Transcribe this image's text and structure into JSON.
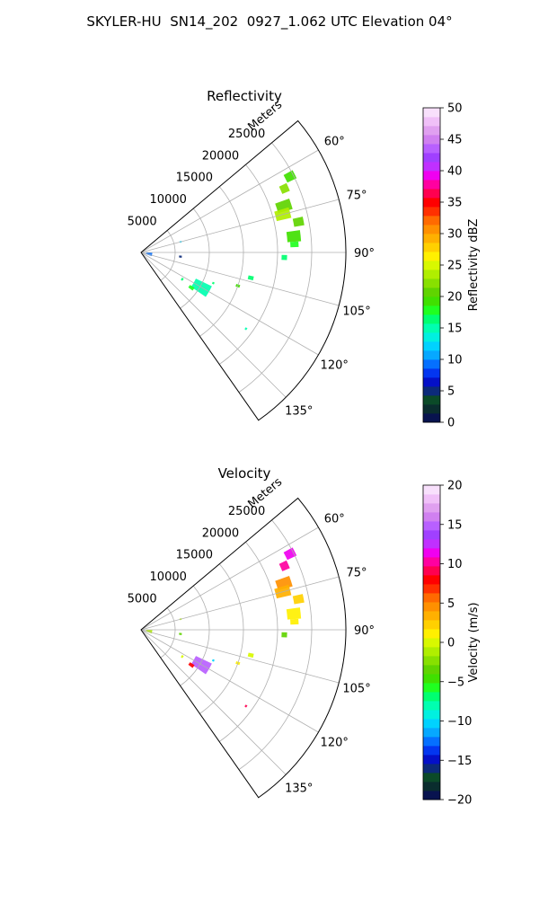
{
  "figure_title": "SKYLER-HU  SN14_202  0927_1.062 UTC Elevation 04°",
  "chart_data": [
    {
      "type": "polar-sector",
      "title": "Reflectivity",
      "radial_label": "Meters",
      "r_ticks": [
        5000,
        10000,
        15000,
        20000,
        25000
      ],
      "r_tick_labels": [
        "5000",
        "10000",
        "15000",
        "20000",
        "25000"
      ],
      "r_range": [
        0,
        30000
      ],
      "theta_ticks": [
        60,
        75,
        90,
        105,
        120,
        135
      ],
      "theta_tick_labels": [
        "60°",
        "75°",
        "90°",
        "105°",
        "120°",
        "135°"
      ],
      "theta_range": [
        50,
        145
      ],
      "grid": true,
      "colorbar": {
        "label": "Reflectivity dBZ",
        "range": [
          0,
          50
        ],
        "ticks": [
          0,
          5,
          10,
          15,
          20,
          25,
          30,
          35,
          40,
          45,
          50
        ],
        "tick_labels": [
          "0",
          "5",
          "10",
          "15",
          "20",
          "25",
          "30",
          "35",
          "40",
          "45",
          "50"
        ],
        "colors": [
          "#08134f",
          "#0a2d2e",
          "#0b4a28",
          "#0c2a7a",
          "#0410c8",
          "#0336f0",
          "#0570ff",
          "#06a8ff",
          "#00d2ff",
          "#00f0e0",
          "#00ffb0",
          "#00ff70",
          "#20ff20",
          "#40e000",
          "#60d400",
          "#88e000",
          "#b0ee00",
          "#d8f800",
          "#fff000",
          "#ffd000",
          "#ffb000",
          "#ff9000",
          "#ff6a00",
          "#ff3000",
          "#ff0000",
          "#ff0050",
          "#ff00a0",
          "#f000f0",
          "#c030ff",
          "#a040ff",
          "#b860ff",
          "#d080f0",
          "#e0a0f0",
          "#f0c0f8",
          "#f8e0fc"
        ]
      },
      "echoes": [
        {
          "az": 63,
          "r": 24500,
          "dr": 1500,
          "daz": 3,
          "value": 19
        },
        {
          "az": 66,
          "r": 23000,
          "dr": 1200,
          "daz": 3,
          "value": 22
        },
        {
          "az": 72,
          "r": 22000,
          "dr": 2200,
          "daz": 4,
          "value": 20
        },
        {
          "az": 75,
          "r": 21500,
          "dr": 2200,
          "daz": 4,
          "value": 23
        },
        {
          "az": 79,
          "r": 23500,
          "dr": 1500,
          "daz": 3,
          "value": 21
        },
        {
          "az": 84,
          "r": 22500,
          "dr": 2000,
          "daz": 4,
          "value": 19
        },
        {
          "az": 87,
          "r": 22500,
          "dr": 1200,
          "daz": 2,
          "value": 18
        },
        {
          "az": 92,
          "r": 21000,
          "dr": 800,
          "daz": 2,
          "value": 17
        },
        {
          "az": 103,
          "r": 16500,
          "dr": 800,
          "daz": 2,
          "value": 17
        },
        {
          "az": 109,
          "r": 15000,
          "dr": 600,
          "daz": 1.5,
          "value": 19
        },
        {
          "az": 120,
          "r": 10200,
          "dr": 2600,
          "daz": 9,
          "value": 15
        },
        {
          "az": 125,
          "r": 9000,
          "dr": 800,
          "daz": 3,
          "value": 18
        },
        {
          "az": 100,
          "r": 1200,
          "dr": 900,
          "daz": 18,
          "value": 9
        },
        {
          "az": 75,
          "r": 6000,
          "dr": 300,
          "daz": 2,
          "value": 12
        },
        {
          "az": 96,
          "r": 5800,
          "dr": 400,
          "daz": 3,
          "value": 5
        },
        {
          "az": 123,
          "r": 7200,
          "dr": 300,
          "daz": 3,
          "value": 16
        },
        {
          "az": 113,
          "r": 11500,
          "dr": 300,
          "daz": 1.5,
          "value": 16
        },
        {
          "az": 126,
          "r": 19000,
          "dr": 300,
          "daz": 1,
          "value": 15
        }
      ]
    },
    {
      "type": "polar-sector",
      "title": "Velocity",
      "radial_label": "Meters",
      "r_ticks": [
        5000,
        10000,
        15000,
        20000,
        25000
      ],
      "r_tick_labels": [
        "5000",
        "10000",
        "15000",
        "20000",
        "25000"
      ],
      "r_range": [
        0,
        30000
      ],
      "theta_ticks": [
        60,
        75,
        90,
        105,
        120,
        135
      ],
      "theta_tick_labels": [
        "60°",
        "75°",
        "90°",
        "105°",
        "120°",
        "135°"
      ],
      "theta_range": [
        50,
        145
      ],
      "grid": true,
      "colorbar": {
        "label": "Velocity (m/s)",
        "range": [
          -20,
          20
        ],
        "ticks": [
          -20,
          -15,
          -10,
          -5,
          0,
          5,
          10,
          15,
          20
        ],
        "tick_labels": [
          "−20",
          "−15",
          "−10",
          "−5",
          "0",
          "5",
          "10",
          "15",
          "20"
        ],
        "colors": [
          "#08134f",
          "#0a2d2e",
          "#0b4a28",
          "#0c2a7a",
          "#0410c8",
          "#0336f0",
          "#0570ff",
          "#06a8ff",
          "#00d2ff",
          "#00f0e0",
          "#00ffb0",
          "#00ff70",
          "#20ff20",
          "#40e000",
          "#60d400",
          "#88e000",
          "#b0ee00",
          "#d8f800",
          "#fff000",
          "#ffd000",
          "#ffb000",
          "#ff9000",
          "#ff6a00",
          "#ff3000",
          "#ff0000",
          "#ff0050",
          "#ff00a0",
          "#f000f0",
          "#c030ff",
          "#a040ff",
          "#b860ff",
          "#d080f0",
          "#e0a0f0",
          "#f0c0f8",
          "#f8e0fc"
        ]
      },
      "echoes": [
        {
          "az": 63,
          "r": 24500,
          "dr": 1500,
          "daz": 3,
          "value": 11
        },
        {
          "az": 66,
          "r": 23000,
          "dr": 1200,
          "daz": 3,
          "value": 10
        },
        {
          "az": 72,
          "r": 22000,
          "dr": 2200,
          "daz": 4,
          "value": 5
        },
        {
          "az": 75,
          "r": 21500,
          "dr": 2200,
          "daz": 4,
          "value": 3
        },
        {
          "az": 79,
          "r": 23500,
          "dr": 1500,
          "daz": 3,
          "value": 2
        },
        {
          "az": 84,
          "r": 22500,
          "dr": 2000,
          "daz": 4,
          "value": 1
        },
        {
          "az": 87,
          "r": 22500,
          "dr": 1200,
          "daz": 2,
          "value": 1
        },
        {
          "az": 92,
          "r": 21000,
          "dr": 800,
          "daz": 2,
          "value": -4
        },
        {
          "az": 103,
          "r": 16500,
          "dr": 800,
          "daz": 2,
          "value": 0
        },
        {
          "az": 109,
          "r": 15000,
          "dr": 600,
          "daz": 1.5,
          "value": 1
        },
        {
          "az": 120,
          "r": 10200,
          "dr": 2600,
          "daz": 9,
          "value": 15
        },
        {
          "az": 125,
          "r": 9000,
          "dr": 800,
          "daz": 3,
          "value": 8
        },
        {
          "az": 100,
          "r": 1200,
          "dr": 900,
          "daz": 18,
          "value": -1
        },
        {
          "az": 75,
          "r": 6000,
          "dr": 300,
          "daz": 2,
          "value": -1
        },
        {
          "az": 96,
          "r": 5800,
          "dr": 400,
          "daz": 3,
          "value": -3
        },
        {
          "az": 123,
          "r": 7200,
          "dr": 300,
          "daz": 3,
          "value": 0
        },
        {
          "az": 113,
          "r": 11500,
          "dr": 300,
          "daz": 1.5,
          "value": -10
        },
        {
          "az": 126,
          "r": 19000,
          "dr": 300,
          "daz": 1,
          "value": 9
        }
      ]
    }
  ]
}
